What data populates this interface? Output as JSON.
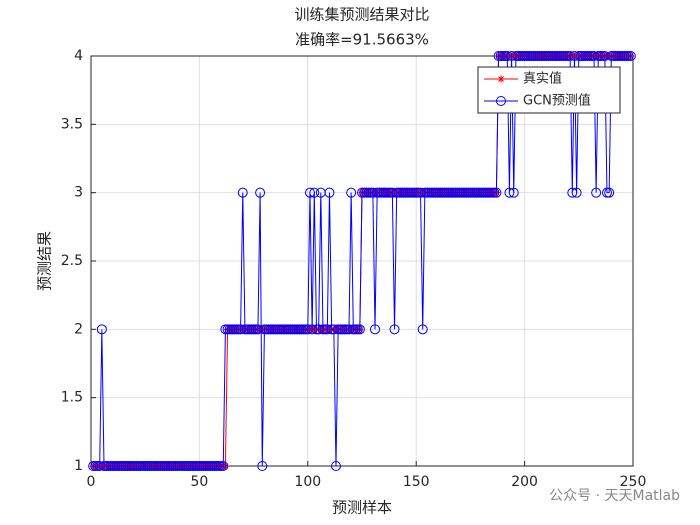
{
  "chart_data": {
    "type": "line",
    "title": "训练集预测结果对比",
    "subtitle": "准确率=91.5663%",
    "x_label": "预测样本",
    "y_label": "预测结果",
    "watermark": "公众号 · 天天Matlab",
    "xlim": [
      0,
      250
    ],
    "xticks": [
      0,
      50,
      100,
      150,
      200,
      250
    ],
    "ylim": [
      1,
      4
    ],
    "yticks": [
      1,
      1.5,
      2,
      2.5,
      3,
      3.5,
      4
    ],
    "grid": true,
    "legend_position": "upper right",
    "x": [
      1,
      2,
      3,
      4,
      5,
      6,
      7,
      8,
      9,
      10,
      11,
      12,
      13,
      14,
      15,
      16,
      17,
      18,
      19,
      20,
      21,
      22,
      23,
      24,
      25,
      26,
      27,
      28,
      29,
      30,
      31,
      32,
      33,
      34,
      35,
      36,
      37,
      38,
      39,
      40,
      41,
      42,
      43,
      44,
      45,
      46,
      47,
      48,
      49,
      50,
      51,
      52,
      53,
      54,
      55,
      56,
      57,
      58,
      59,
      60,
      61,
      62,
      63,
      64,
      65,
      66,
      67,
      68,
      69,
      70,
      71,
      72,
      73,
      74,
      75,
      76,
      77,
      78,
      79,
      80,
      81,
      82,
      83,
      84,
      85,
      86,
      87,
      88,
      89,
      90,
      91,
      92,
      93,
      94,
      95,
      96,
      97,
      98,
      99,
      100,
      101,
      102,
      103,
      104,
      105,
      106,
      107,
      108,
      109,
      110,
      111,
      112,
      113,
      114,
      115,
      116,
      117,
      118,
      119,
      120,
      121,
      122,
      123,
      124,
      125,
      126,
      127,
      128,
      129,
      130,
      131,
      132,
      133,
      134,
      135,
      136,
      137,
      138,
      139,
      140,
      141,
      142,
      143,
      144,
      145,
      146,
      147,
      148,
      149,
      150,
      151,
      152,
      153,
      154,
      155,
      156,
      157,
      158,
      159,
      160,
      161,
      162,
      163,
      164,
      165,
      166,
      167,
      168,
      169,
      170,
      171,
      172,
      173,
      174,
      175,
      176,
      177,
      178,
      179,
      180,
      181,
      182,
      183,
      184,
      185,
      186,
      187,
      188,
      189,
      190,
      191,
      192,
      193,
      194,
      195,
      196,
      197,
      198,
      199,
      200,
      201,
      202,
      203,
      204,
      205,
      206,
      207,
      208,
      209,
      210,
      211,
      212,
      213,
      214,
      215,
      216,
      217,
      218,
      219,
      220,
      221,
      222,
      223,
      224,
      225,
      226,
      227,
      228,
      229,
      230,
      231,
      232,
      233,
      234,
      235,
      236,
      237,
      238,
      239,
      240,
      241,
      242,
      243,
      244,
      245,
      246,
      247,
      248,
      249
    ],
    "series": [
      {
        "name": "真实值",
        "color": "#ff0000",
        "marker": "asterisk",
        "values": [
          1,
          1,
          1,
          1,
          1,
          1,
          1,
          1,
          1,
          1,
          1,
          1,
          1,
          1,
          1,
          1,
          1,
          1,
          1,
          1,
          1,
          1,
          1,
          1,
          1,
          1,
          1,
          1,
          1,
          1,
          1,
          1,
          1,
          1,
          1,
          1,
          1,
          1,
          1,
          1,
          1,
          1,
          1,
          1,
          1,
          1,
          1,
          1,
          1,
          1,
          1,
          1,
          1,
          1,
          1,
          1,
          1,
          1,
          1,
          1,
          1,
          1,
          2,
          2,
          2,
          2,
          2,
          2,
          2,
          2,
          2,
          2,
          2,
          2,
          2,
          2,
          2,
          2,
          2,
          2,
          2,
          2,
          2,
          2,
          2,
          2,
          2,
          2,
          2,
          2,
          2,
          2,
          2,
          2,
          2,
          2,
          2,
          2,
          2,
          2,
          2,
          2,
          2,
          2,
          2,
          2,
          2,
          2,
          2,
          2,
          2,
          2,
          2,
          2,
          2,
          2,
          2,
          2,
          2,
          2,
          2,
          2,
          2,
          2,
          3,
          3,
          3,
          3,
          3,
          3,
          3,
          3,
          3,
          3,
          3,
          3,
          3,
          3,
          3,
          3,
          3,
          3,
          3,
          3,
          3,
          3,
          3,
          3,
          3,
          3,
          3,
          3,
          3,
          3,
          3,
          3,
          3,
          3,
          3,
          3,
          3,
          3,
          3,
          3,
          3,
          3,
          3,
          3,
          3,
          3,
          3,
          3,
          3,
          3,
          3,
          3,
          3,
          3,
          3,
          3,
          3,
          3,
          3,
          3,
          3,
          3,
          3,
          4,
          4,
          4,
          4,
          4,
          4,
          4,
          4,
          4,
          4,
          4,
          4,
          4,
          4,
          4,
          4,
          4,
          4,
          4,
          4,
          4,
          4,
          4,
          4,
          4,
          4,
          4,
          4,
          4,
          4,
          4,
          4,
          4,
          4,
          4,
          4,
          4,
          4,
          4,
          4,
          4,
          4,
          4,
          4,
          4,
          4,
          4,
          4,
          4,
          4,
          4,
          4,
          4,
          4,
          4,
          4,
          4,
          4,
          4,
          4,
          4,
          4
        ]
      },
      {
        "name": "GCN预测值",
        "color": "#0000ff",
        "marker": "circle",
        "values": [
          1,
          1,
          1,
          1,
          2,
          1,
          1,
          1,
          1,
          1,
          1,
          1,
          1,
          1,
          1,
          1,
          1,
          1,
          1,
          1,
          1,
          1,
          1,
          1,
          1,
          1,
          1,
          1,
          1,
          1,
          1,
          1,
          1,
          1,
          1,
          1,
          1,
          1,
          1,
          1,
          1,
          1,
          1,
          1,
          1,
          1,
          1,
          1,
          1,
          1,
          1,
          1,
          1,
          1,
          1,
          1,
          1,
          1,
          1,
          1,
          1,
          2,
          2,
          2,
          2,
          2,
          2,
          2,
          2,
          3,
          2,
          2,
          2,
          2,
          2,
          2,
          2,
          3,
          1,
          2,
          2,
          2,
          2,
          2,
          2,
          2,
          2,
          2,
          2,
          2,
          2,
          2,
          2,
          2,
          2,
          2,
          2,
          2,
          2,
          2,
          3,
          2,
          3,
          2,
          2,
          3,
          2,
          2,
          2,
          3,
          2,
          2,
          1,
          2,
          2,
          2,
          2,
          2,
          2,
          3,
          2,
          2,
          2,
          2,
          3,
          3,
          3,
          3,
          3,
          3,
          2,
          3,
          3,
          3,
          3,
          3,
          3,
          3,
          3,
          2,
          3,
          3,
          3,
          3,
          3,
          3,
          3,
          3,
          3,
          3,
          3,
          3,
          2,
          3,
          3,
          3,
          3,
          3,
          3,
          3,
          3,
          3,
          3,
          3,
          3,
          3,
          3,
          3,
          3,
          3,
          3,
          3,
          3,
          3,
          3,
          3,
          3,
          3,
          3,
          3,
          3,
          3,
          3,
          3,
          3,
          3,
          3,
          4,
          4,
          4,
          4,
          4,
          3,
          4,
          3,
          4,
          4,
          4,
          4,
          4,
          4,
          4,
          4,
          4,
          4,
          4,
          4,
          4,
          4,
          4,
          4,
          4,
          4,
          4,
          4,
          4,
          4,
          4,
          4,
          4,
          4,
          3,
          4,
          3,
          4,
          4,
          4,
          4,
          4,
          4,
          4,
          4,
          3,
          4,
          4,
          4,
          4,
          3,
          3,
          4,
          4,
          4,
          4,
          4,
          4,
          4,
          4,
          4,
          4
        ]
      }
    ]
  }
}
